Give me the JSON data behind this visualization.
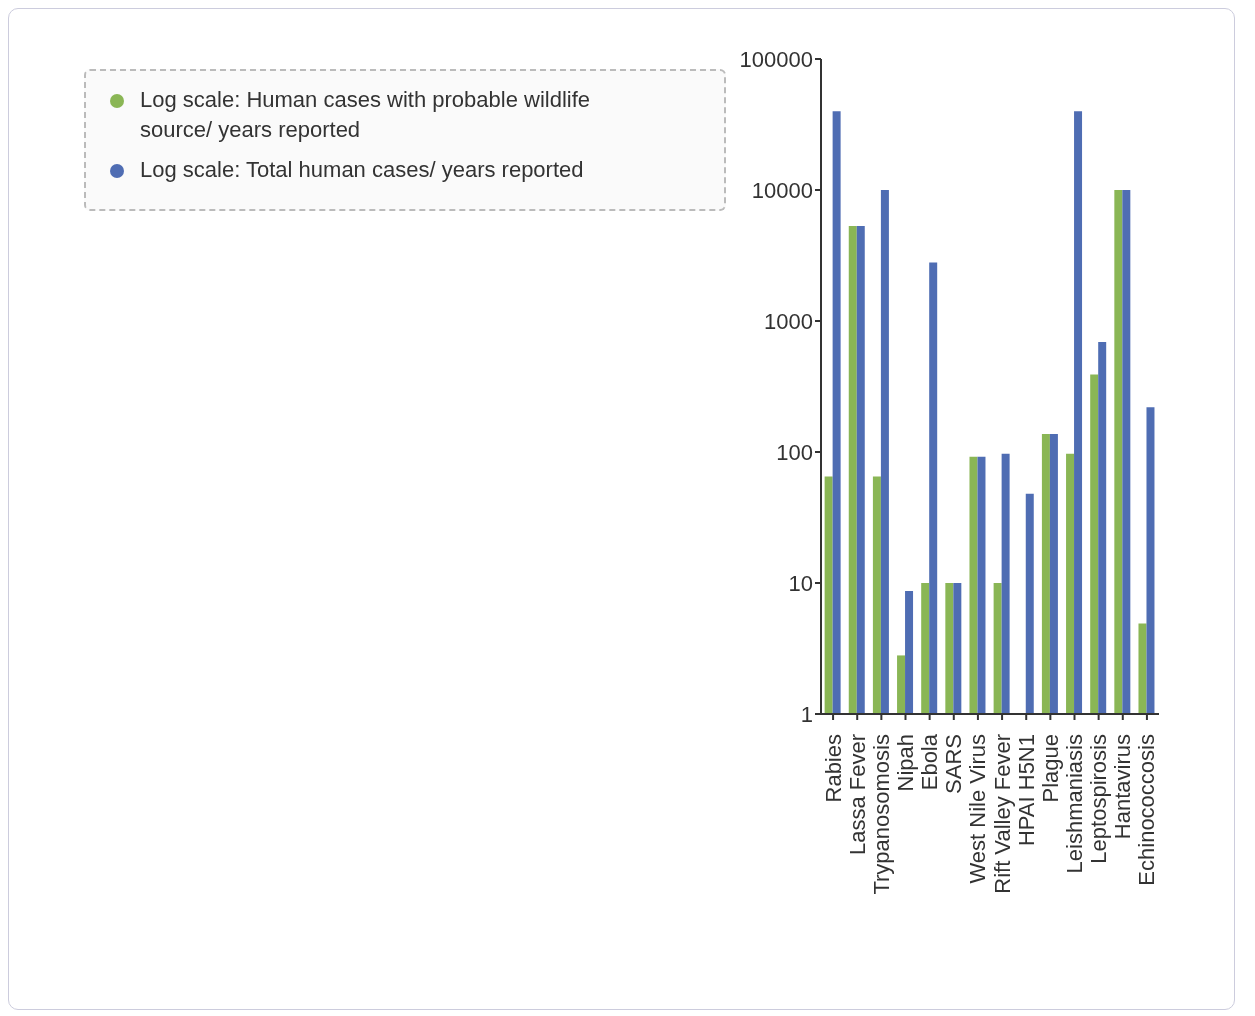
{
  "chart_data": {
    "type": "bar",
    "categories": [
      "Rabies",
      "Lassa Fever",
      "Trypanosomosis",
      "Nipah",
      "Ebola",
      "SARS",
      "West Nile Virus",
      "Rift Valley Fever",
      "HPAI H5N1",
      "Plague",
      "Leishmaniasis",
      "Leptospirosis",
      "Hantavirus",
      "Echinococcosis"
    ],
    "series": [
      {
        "name": "Log scale: Human cases with probable wildlife source/ years reported",
        "color": "#8ab655",
        "values": [
          65,
          5300,
          65,
          2.8,
          10,
          10,
          92,
          10,
          null,
          137,
          97,
          390,
          10000,
          4.9
        ]
      },
      {
        "name": "Log scale: Total human cases/ years reported",
        "color": "#4f6db3",
        "values": [
          40000,
          5300,
          10000,
          8.7,
          2800,
          10,
          92,
          97,
          48,
          137,
          40000,
          690,
          10000,
          220
        ]
      }
    ],
    "log": true,
    "ylim": [
      1,
      100000
    ],
    "yticks": [
      1,
      10,
      100,
      1000,
      10000,
      100000
    ],
    "grid": false,
    "legend": "top left"
  }
}
